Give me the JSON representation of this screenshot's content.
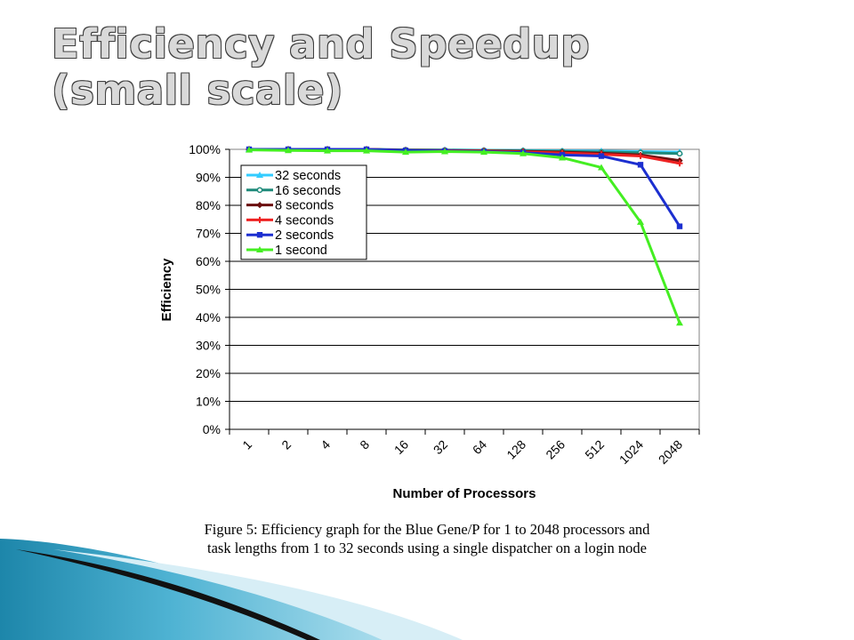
{
  "slide": {
    "title_line1": "Efficiency and Speedup",
    "title_line2": "(small scale)"
  },
  "figure": {
    "caption_line1": "Figure 5: Efficiency graph for the Blue Gene/P for 1 to 2048 processors and",
    "caption_line2": "task lengths from 1 to 32 seconds using a single dispatcher on a login node"
  },
  "chart_data": {
    "type": "line",
    "title": "",
    "xlabel": "Number of Processors",
    "ylabel": "Efficiency",
    "categories": [
      "1",
      "2",
      "4",
      "8",
      "16",
      "32",
      "64",
      "128",
      "256",
      "512",
      "1024",
      "2048"
    ],
    "y_ticks": [
      "0%",
      "10%",
      "20%",
      "30%",
      "40%",
      "50%",
      "60%",
      "70%",
      "80%",
      "90%",
      "100%"
    ],
    "ylim": [
      0,
      100
    ],
    "grid": true,
    "legend_position": "top-left",
    "series": [
      {
        "name": "32 seconds",
        "color": "#33ccff",
        "marker": "triangle",
        "values": [
          100,
          100,
          100,
          100,
          99.8,
          99.8,
          99.7,
          99.6,
          99.5,
          99.4,
          99.2,
          99
        ]
      },
      {
        "name": "16 seconds",
        "color": "#1f8a7a",
        "marker": "circle",
        "values": [
          100,
          100,
          100,
          100,
          99.8,
          99.7,
          99.6,
          99.5,
          99.3,
          99,
          98.8,
          98.5
        ]
      },
      {
        "name": "8 seconds",
        "color": "#6b0f0f",
        "marker": "diamond",
        "values": [
          100,
          100,
          100,
          100,
          99.7,
          99.6,
          99.5,
          99.3,
          99,
          98.6,
          98,
          96
        ]
      },
      {
        "name": "4 seconds",
        "color": "#ee2222",
        "marker": "plus",
        "values": [
          100,
          100,
          100,
          100,
          99.6,
          99.5,
          99.4,
          99.1,
          98.7,
          98.2,
          97.6,
          95
        ]
      },
      {
        "name": "2 seconds",
        "color": "#1c2fd0",
        "marker": "square",
        "values": [
          100,
          100,
          100,
          100,
          99.6,
          99.4,
          99.2,
          98.8,
          98,
          97.6,
          94.5,
          72.5
        ]
      },
      {
        "name": "1 second",
        "color": "#44ee22",
        "marker": "triangle",
        "values": [
          99.8,
          99.6,
          99.5,
          99.5,
          99,
          99.2,
          99,
          98.5,
          97,
          93.5,
          74,
          38
        ]
      }
    ]
  }
}
